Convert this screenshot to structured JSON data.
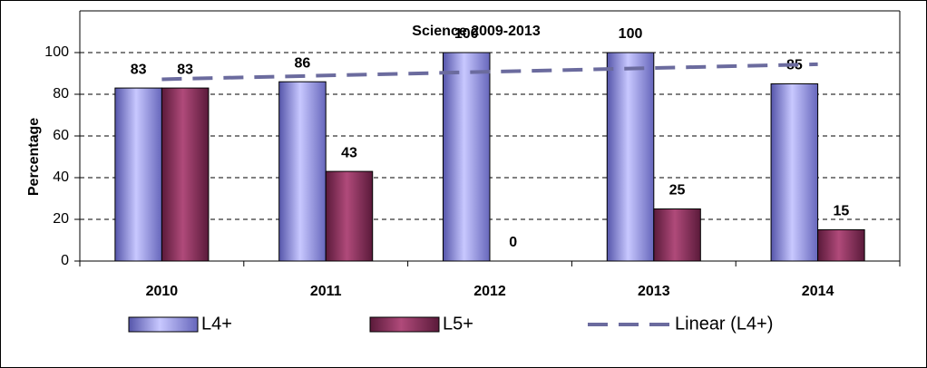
{
  "chart_data": {
    "type": "bar",
    "title": "Science 2009-2013",
    "y_label": "Percentage",
    "categories": [
      "2010",
      "2011",
      "2012",
      "2013",
      "2014"
    ],
    "series": [
      {
        "name": "L4+",
        "color": "#9999ff",
        "values": [
          83,
          86,
          100,
          100,
          85
        ]
      },
      {
        "name": "L5+",
        "color": "#993366",
        "values": [
          83,
          43,
          0,
          25,
          15
        ]
      }
    ],
    "trendline": {
      "name": "Linear (L4+)",
      "color": "#6b6b9e",
      "kind": "linear"
    },
    "ylim": [
      0,
      100
    ],
    "yticks": [
      0,
      20,
      40,
      60,
      80,
      100
    ],
    "grid": true,
    "legend": "bottom"
  }
}
